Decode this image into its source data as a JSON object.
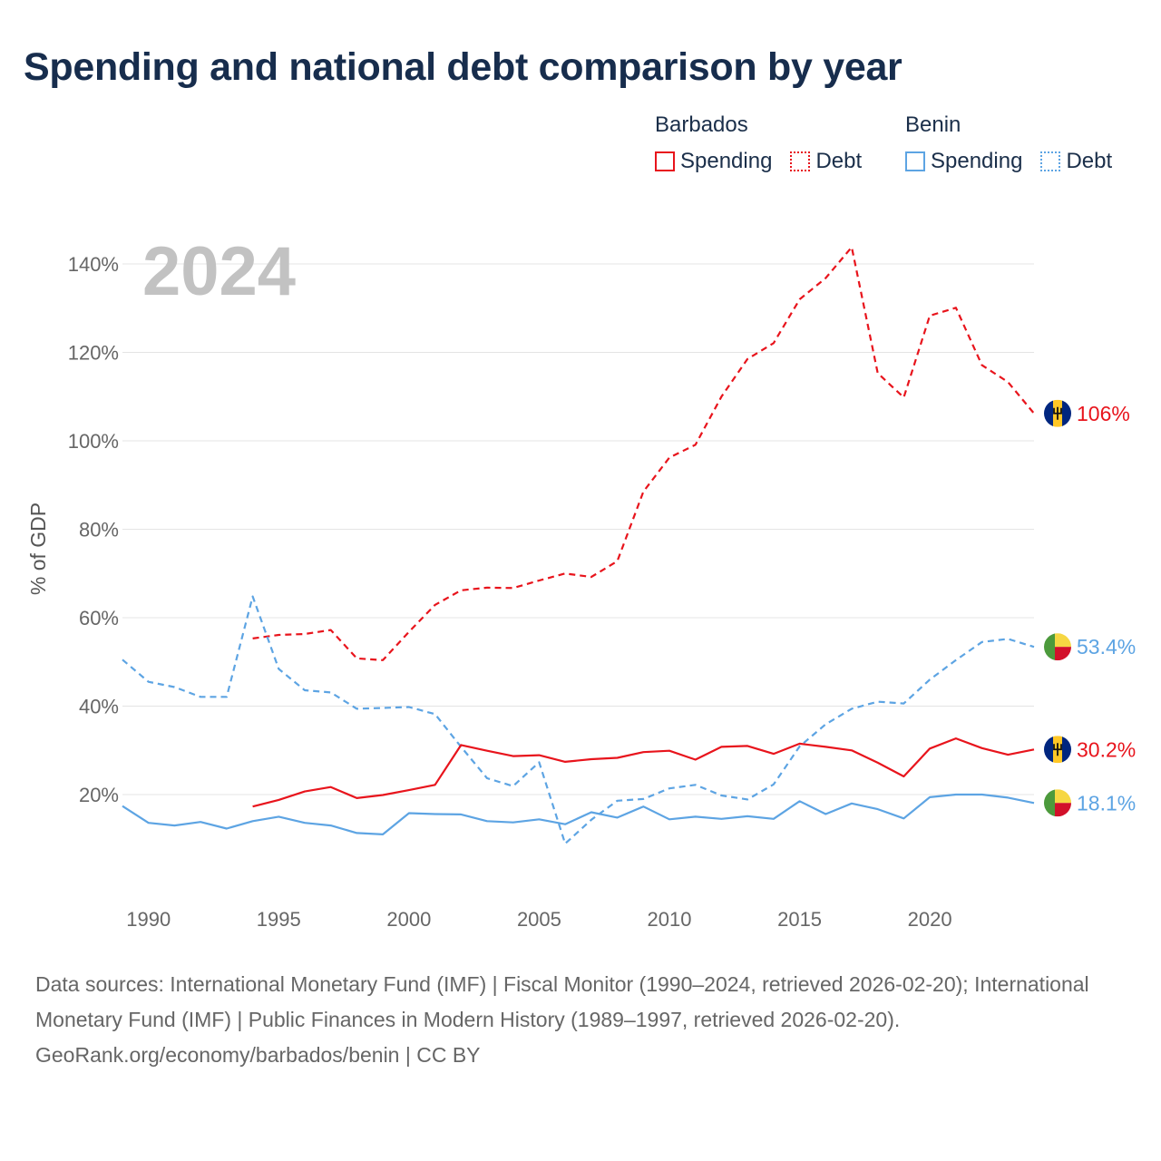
{
  "title": "Spending and national debt comparison by year",
  "year_label": "2024",
  "legend": [
    {
      "country": "Barbados",
      "items": [
        {
          "label": "Spending",
          "style": "solid",
          "color": "#e8141c"
        },
        {
          "label": "Debt",
          "style": "dotted",
          "color": "#e8141c"
        }
      ]
    },
    {
      "country": "Benin",
      "items": [
        {
          "label": "Spending",
          "style": "solid",
          "color": "#5da4e3"
        },
        {
          "label": "Debt",
          "style": "dotted",
          "color": "#5da4e3"
        }
      ]
    }
  ],
  "footer": {
    "sources": "Data sources: International Monetary Fund (IMF) | Fiscal Monitor (1990–2024, retrieved 2026-02-20); International Monetary Fund (IMF) | Public Finances in Modern History (1989–1997, retrieved 2026-02-20).",
    "credit": "GeoRank.org/economy/barbados/benin | CC BY"
  },
  "chart_data": {
    "type": "line",
    "title": "Spending and national debt comparison by year",
    "xlabel": "",
    "ylabel": "% of GDP",
    "xlim": [
      1989,
      2024
    ],
    "ylim": [
      0,
      145
    ],
    "x_ticks": [
      1990,
      1995,
      2000,
      2005,
      2010,
      2015,
      2020
    ],
    "y_ticks": [
      20,
      40,
      60,
      80,
      100,
      120,
      140
    ],
    "y_tick_labels": [
      "20%",
      "40%",
      "60%",
      "80%",
      "100%",
      "120%",
      "140%"
    ],
    "grid": true,
    "series": [
      {
        "name": "Barbados Debt",
        "country": "Barbados",
        "measure": "Debt",
        "color": "#e8141c",
        "dash": "dashed",
        "end_label": "106%",
        "flag": "barbados",
        "x": [
          1994,
          1995,
          1996,
          1997,
          1998,
          1999,
          2000,
          2001,
          2002,
          2003,
          2004,
          2005,
          2006,
          2007,
          2008,
          2009,
          2010,
          2011,
          2012,
          2013,
          2014,
          2015,
          2016,
          2017,
          2018,
          2019,
          2020,
          2021,
          2022,
          2023,
          2024
        ],
        "values": [
          55.3,
          56.1,
          56.3,
          57.2,
          50.8,
          50.4,
          56.8,
          62.9,
          66.2,
          66.8,
          66.7,
          68.4,
          70,
          69.2,
          72.8,
          88.5,
          96.2,
          99.1,
          110,
          118.5,
          122.1,
          132,
          136.8,
          143.8,
          115.3,
          109.8,
          128.3,
          130.1,
          117.1,
          113.3,
          106.2
        ]
      },
      {
        "name": "Benin Debt",
        "country": "Benin",
        "measure": "Debt",
        "color": "#5da4e3",
        "dash": "dashed",
        "end_label": "53.4%",
        "flag": "benin",
        "x": [
          1989,
          1990,
          1991,
          1992,
          1993,
          1994,
          1995,
          1996,
          1997,
          1998,
          1999,
          2000,
          2001,
          2002,
          2003,
          2004,
          2005,
          2006,
          2007,
          2008,
          2009,
          2010,
          2011,
          2012,
          2013,
          2014,
          2015,
          2016,
          2017,
          2018,
          2019,
          2020,
          2021,
          2022,
          2023,
          2024
        ],
        "values": [
          50.5,
          45.5,
          44.3,
          42.1,
          42.1,
          64.8,
          48.4,
          43.6,
          43.1,
          39.4,
          39.6,
          39.8,
          38.2,
          30.8,
          23.7,
          21.9,
          27.3,
          8.9,
          14.3,
          18.6,
          19,
          21.4,
          22.2,
          19.8,
          18.9,
          22.3,
          30.9,
          35.9,
          39.4,
          41,
          40.6,
          46,
          50.4,
          54.5,
          55.2,
          53.4
        ]
      },
      {
        "name": "Barbados Spending",
        "country": "Barbados",
        "measure": "Spending",
        "color": "#e8141c",
        "dash": "solid",
        "end_label": "30.2%",
        "flag": "barbados",
        "x": [
          1994,
          1995,
          1996,
          1997,
          1998,
          1999,
          2000,
          2001,
          2002,
          2003,
          2004,
          2005,
          2006,
          2007,
          2008,
          2009,
          2010,
          2011,
          2012,
          2013,
          2014,
          2015,
          2016,
          2017,
          2018,
          2019,
          2020,
          2021,
          2022,
          2023,
          2024
        ],
        "values": [
          17.3,
          18.8,
          20.7,
          21.7,
          19.2,
          19.9,
          21,
          22.2,
          31.2,
          29.9,
          28.7,
          28.9,
          27.4,
          28,
          28.3,
          29.6,
          29.9,
          27.9,
          30.8,
          31,
          29.2,
          31.5,
          30.8,
          30,
          27.2,
          24.1,
          30.4,
          32.7,
          30.5,
          29,
          30.2
        ]
      },
      {
        "name": "Benin Spending",
        "country": "Benin",
        "measure": "Spending",
        "color": "#5da4e3",
        "dash": "solid",
        "end_label": "18.1%",
        "flag": "benin",
        "x": [
          1989,
          1990,
          1991,
          1992,
          1993,
          1994,
          1995,
          1996,
          1997,
          1998,
          1999,
          2000,
          2001,
          2002,
          2003,
          2004,
          2005,
          2006,
          2007,
          2008,
          2009,
          2010,
          2011,
          2012,
          2013,
          2014,
          2015,
          2016,
          2017,
          2018,
          2019,
          2020,
          2021,
          2022,
          2023,
          2024
        ],
        "values": [
          17.4,
          13.6,
          13,
          13.8,
          12.3,
          14,
          15,
          13.6,
          13,
          11.3,
          11,
          15.8,
          15.6,
          15.5,
          14,
          13.7,
          14.4,
          13.3,
          16,
          14.8,
          17.3,
          14.4,
          15,
          14.5,
          15.1,
          14.5,
          18.5,
          15.6,
          18,
          16.7,
          14.6,
          19.4,
          20,
          20,
          19.3,
          18.1
        ]
      }
    ]
  }
}
